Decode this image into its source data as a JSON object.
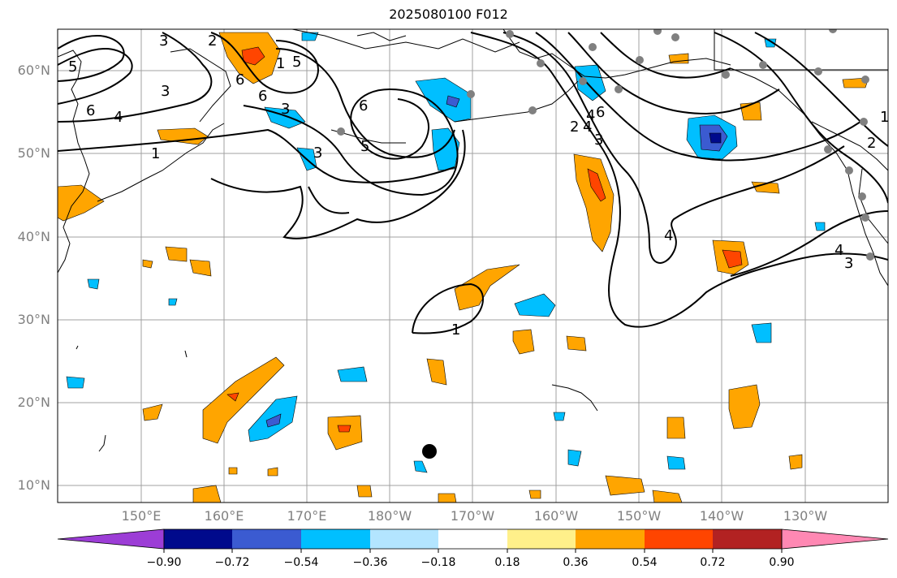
{
  "title": "2025080100 F012",
  "lat_labels": [
    "60°N",
    "50°N",
    "40°N",
    "30°N",
    "20°N",
    "10°N"
  ],
  "lon_labels": [
    "150°E",
    "160°E",
    "170°E",
    "180°W",
    "170°W",
    "160°W",
    "150°W",
    "140°W",
    "130°W"
  ],
  "contour_labels": [
    "5",
    "6",
    "4",
    "1",
    "2",
    "3",
    "6",
    "6",
    "5",
    "3",
    "6",
    "5",
    "3",
    "1",
    "2",
    "4",
    "3",
    "4",
    "6",
    "4",
    "3",
    "2",
    "1",
    "4",
    "3",
    "1"
  ],
  "colorbar": {
    "tick_labels": [
      "−0.90",
      "−0.72",
      "−0.54",
      "−0.36",
      "−0.18",
      "0.18",
      "0.36",
      "0.54",
      "0.72",
      "0.90"
    ],
    "colors": [
      "#9c3dd6",
      "#000a8c",
      "#3b5bd1",
      "#00bfff",
      "#b3e5ff",
      "#ffffff",
      "#fff08a",
      "#ffa500",
      "#ff4500",
      "#b22222",
      "#ff88b3"
    ]
  },
  "palette": {
    "land_line": "#000000",
    "grid": "#a0a0a0",
    "contour": "#000000",
    "station_dot": "#808080"
  }
}
